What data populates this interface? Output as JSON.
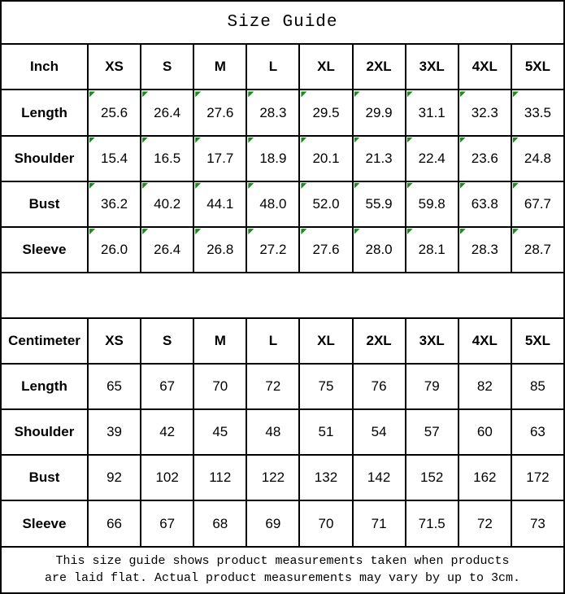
{
  "title": "Size Guide",
  "colors": {
    "flag_green": "#149114",
    "border": "#000000",
    "background": "#ffffff",
    "text": "#000000"
  },
  "inch_table": {
    "unit_label": "Inch",
    "sizes": [
      "XS",
      "S",
      "M",
      "L",
      "XL",
      "2XL",
      "3XL",
      "4XL",
      "5XL"
    ],
    "cell_flag": true,
    "rows": [
      {
        "label": "Length",
        "values": [
          "25.6",
          "26.4",
          "27.6",
          "28.3",
          "29.5",
          "29.9",
          "31.1",
          "32.3",
          "33.5"
        ]
      },
      {
        "label": "Shoulder",
        "values": [
          "15.4",
          "16.5",
          "17.7",
          "18.9",
          "20.1",
          "21.3",
          "22.4",
          "23.6",
          "24.8"
        ]
      },
      {
        "label": "Bust",
        "values": [
          "36.2",
          "40.2",
          "44.1",
          "48.0",
          "52.0",
          "55.9",
          "59.8",
          "63.8",
          "67.7"
        ]
      },
      {
        "label": "Sleeve",
        "values": [
          "26.0",
          "26.4",
          "26.8",
          "27.2",
          "27.6",
          "28.0",
          "28.1",
          "28.3",
          "28.7"
        ]
      }
    ]
  },
  "cm_table": {
    "unit_label": "Centimeter",
    "sizes": [
      "XS",
      "S",
      "M",
      "L",
      "XL",
      "2XL",
      "3XL",
      "4XL",
      "5XL"
    ],
    "cell_flag": false,
    "rows": [
      {
        "label": "Length",
        "values": [
          "65",
          "67",
          "70",
          "72",
          "75",
          "76",
          "79",
          "82",
          "85"
        ]
      },
      {
        "label": "Shoulder",
        "values": [
          "39",
          "42",
          "45",
          "48",
          "51",
          "54",
          "57",
          "60",
          "63"
        ]
      },
      {
        "label": "Bust",
        "values": [
          "92",
          "102",
          "112",
          "122",
          "132",
          "142",
          "152",
          "162",
          "172"
        ]
      },
      {
        "label": "Sleeve",
        "values": [
          "66",
          "67",
          "68",
          "69",
          "70",
          "71",
          "71.5",
          "72",
          "73"
        ]
      }
    ]
  },
  "footer": {
    "line1": "This size guide shows product measurements taken when products",
    "line2": "are laid flat. Actual product measurements may vary by up to 3cm."
  }
}
